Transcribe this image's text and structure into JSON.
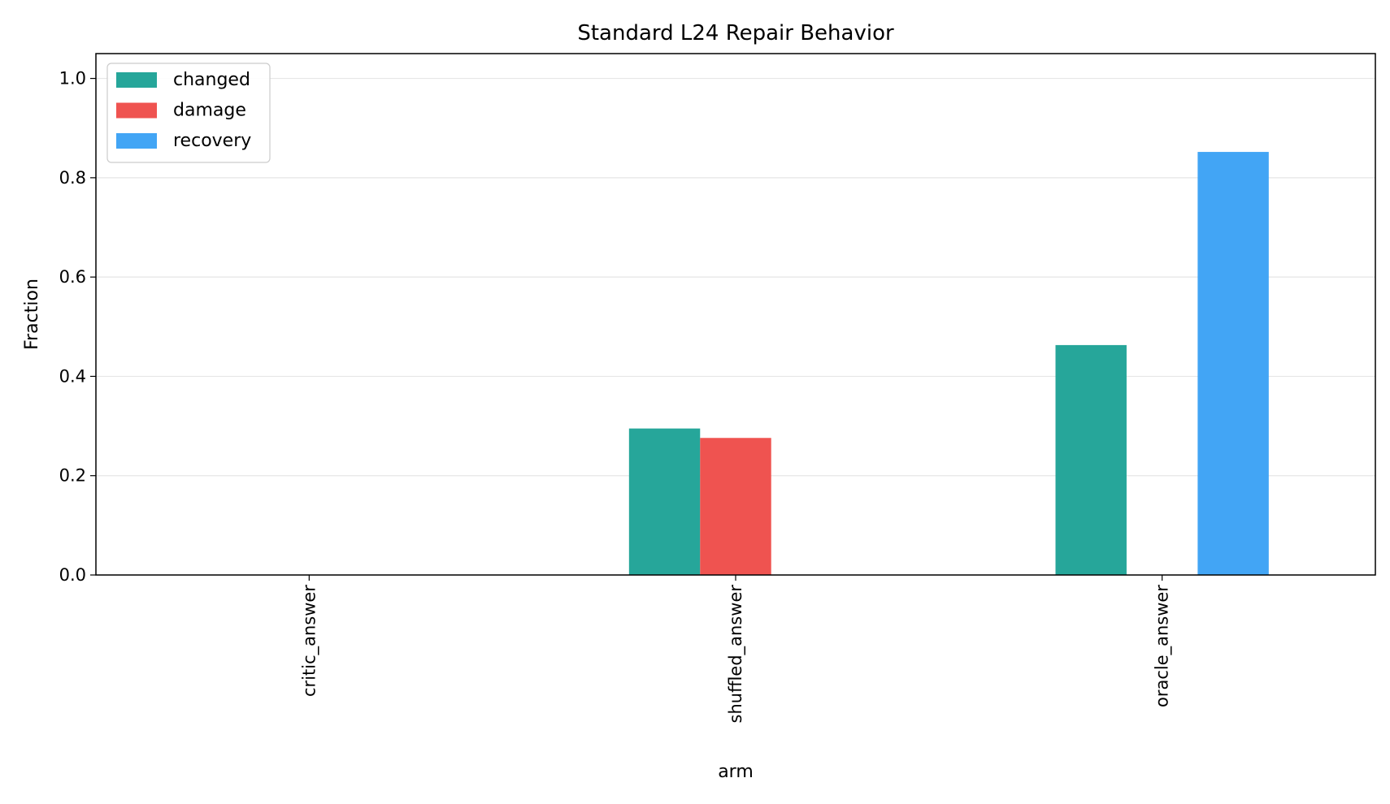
{
  "chart_data": {
    "type": "bar",
    "title": "Standard L24 Repair Behavior",
    "xlabel": "arm",
    "ylabel": "Fraction",
    "ylim": [
      0,
      1.05
    ],
    "yticks": [
      "0.0",
      "0.2",
      "0.4",
      "0.6",
      "0.8",
      "1.0"
    ],
    "categories": [
      "critic_answer",
      "shuffled_answer",
      "oracle_answer"
    ],
    "series": [
      {
        "name": "changed",
        "color": "#26a69a",
        "values": [
          0.0,
          0.295,
          0.463
        ]
      },
      {
        "name": "damage",
        "color": "#ef5350",
        "values": [
          0.0,
          0.276,
          0.0
        ]
      },
      {
        "name": "recovery",
        "color": "#42a5f5",
        "values": [
          0.0,
          0.0,
          0.852
        ]
      }
    ],
    "grid": "y",
    "legend": "top-left"
  }
}
